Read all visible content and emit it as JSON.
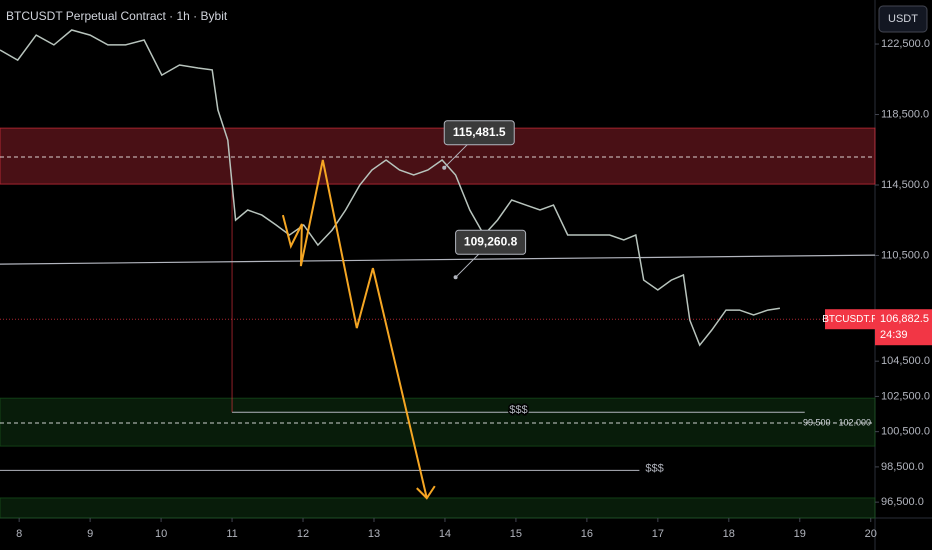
{
  "chart_data": {
    "type": "line",
    "title": "BTCUSDT Perpetual Contract · 1h · Bybit",
    "currency": "USDT",
    "color": "#b8c4bd",
    "x": [
      7.73,
      7.98,
      8.24,
      8.49,
      8.74,
      9.0,
      9.25,
      9.5,
      9.76,
      10.01,
      10.26,
      10.52,
      10.72,
      10.8,
      10.94,
      11.05,
      11.22,
      11.42,
      11.62,
      11.81,
      12.01,
      12.21,
      12.41,
      12.6,
      12.8,
      12.97,
      13.17,
      13.36,
      13.56,
      13.76,
      13.96,
      14.15,
      14.35,
      14.55,
      14.74,
      14.94,
      15.14,
      15.34,
      15.53,
      15.73,
      15.93,
      16.12,
      16.32,
      16.52,
      16.69,
      16.8,
      17.0,
      17.19,
      17.36,
      17.45,
      17.59,
      17.76,
      17.96,
      18.15,
      18.35,
      18.55,
      18.72
    ],
    "values": [
      122160,
      121590,
      123010,
      122450,
      123300,
      123010,
      122450,
      122450,
      122730,
      120740,
      121310,
      121140,
      121030,
      118760,
      117050,
      112510,
      113080,
      112790,
      112230,
      111660,
      112230,
      111090,
      111940,
      113080,
      114500,
      115350,
      115920,
      115350,
      115070,
      115350,
      115920,
      115070,
      113080,
      111660,
      112510,
      113650,
      113360,
      113080,
      113360,
      111660,
      111660,
      111660,
      111660,
      111380,
      111660,
      109100,
      108540,
      109100,
      109390,
      106830,
      105410,
      106270,
      107400,
      107400,
      107120,
      107400,
      107510
    ],
    "xlim": [
      7.73,
      20.06
    ],
    "ylim": [
      95600,
      125000
    ],
    "xticks": [
      8,
      9,
      10,
      11,
      12,
      13,
      14,
      15,
      16,
      17,
      18,
      19,
      20
    ],
    "yticks": [
      {
        "value": 122500,
        "label": "122,500.0"
      },
      {
        "value": 118500,
        "label": "118,500.0"
      },
      {
        "value": 114500,
        "label": "114,500.0"
      },
      {
        "value": 110500,
        "label": "110,500.0"
      },
      {
        "value": 104500,
        "label": "104,500.0"
      },
      {
        "value": 102500,
        "label": "102,500.0"
      },
      {
        "value": 100500,
        "label": "100,500.0"
      },
      {
        "value": 98500,
        "label": "98,500.0"
      },
      {
        "value": 96500,
        "label": "96,500.0"
      }
    ],
    "zones": [
      {
        "from": 114550,
        "to": 117730,
        "mid": 116090,
        "color": "#f23645"
      },
      {
        "from": 99680,
        "to": 102400,
        "mid": 100990,
        "color": "#1b5e20",
        "label": "99.500 - 102.000"
      },
      {
        "from": 95600,
        "to": 96740,
        "color": "#1b5e20"
      }
    ],
    "trendline": {
      "x": [
        7.73,
        20.06
      ],
      "values": [
        110010,
        110520
      ]
    },
    "levels": [
      {
        "value": 101600,
        "x": [
          11.0,
          19.07
        ],
        "label": "$$$"
      },
      {
        "value": 98300,
        "x": [
          7.73,
          16.74
        ],
        "label": "$$$"
      }
    ],
    "marker_line": {
      "x": 11.0,
      "values": [
        114550,
        101600
      ]
    },
    "projection": {
      "color": "#f5a623",
      "x": [
        11.716,
        11.829,
        11.984,
        11.97,
        12.279,
        12.758,
        12.984,
        13.744
      ],
      "values": [
        112794,
        111034,
        112284,
        109899,
        115917,
        106379,
        109786,
        96728
      ]
    },
    "callouts": [
      {
        "x": 13.99,
        "value": 115481.5,
        "label": "115,481.5"
      },
      {
        "x": 14.15,
        "value": 109260.8,
        "label": "109,260.8"
      }
    ],
    "price_tag": {
      "name": "BTCUSDT.P",
      "value": 106882.5,
      "label": "106,882.5",
      "timer": "24:39"
    }
  }
}
